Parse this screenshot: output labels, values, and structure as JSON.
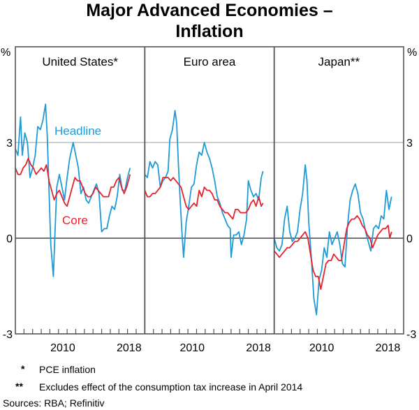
{
  "chart_data": {
    "type": "line",
    "title": "Major Advanced Economies – Inflation",
    "title_lines": [
      "Major Advanced Economies –",
      "Inflation"
    ],
    "ylabel": "%",
    "ylim": [
      -3,
      6
    ],
    "yticks": [
      -3,
      0,
      3
    ],
    "xlim": [
      2005,
      2020
    ],
    "xtick_labels": [
      "2010",
      "2018"
    ],
    "grid": "horizontal at 3",
    "colors": {
      "headline": "#1e9bd7",
      "core": "#e8222d",
      "axis": "#555555",
      "grid": "#b0b0b0"
    },
    "series_labels": {
      "headline": "Headline",
      "core": "Core"
    },
    "panels": [
      {
        "name": "United States*",
        "series": [
          {
            "name": "Headline",
            "x": [
              2005,
              2005.3,
              2005.6,
              2005.8,
              2006.1,
              2006.4,
              2006.7,
              2007.0,
              2007.3,
              2007.6,
              2007.9,
              2008.2,
              2008.5,
              2008.7,
              2008.9,
              2009.1,
              2009.4,
              2009.6,
              2009.8,
              2010.1,
              2010.4,
              2010.7,
              2011.0,
              2011.3,
              2011.7,
              2012.0,
              2012.3,
              2012.6,
              2012.9,
              2013.2,
              2013.5,
              2013.8,
              2014.1,
              2014.4,
              2014.7,
              2015.0,
              2015.3,
              2015.6,
              2015.9,
              2016.2,
              2016.5,
              2016.8,
              2017.1,
              2017.4,
              2017.7,
              2018.0,
              2018.3
            ],
            "values": [
              2.8,
              2.6,
              3.8,
              2.6,
              3.3,
              3.0,
              1.9,
              2.2,
              2.6,
              3.5,
              3.4,
              3.7,
              4.2,
              3.2,
              1.5,
              -0.2,
              -1.2,
              0.2,
              1.6,
              2.0,
              1.6,
              1.2,
              1.9,
              2.5,
              3.0,
              2.6,
              2.2,
              1.4,
              1.6,
              1.2,
              1.1,
              1.3,
              1.5,
              1.7,
              1.4,
              0.2,
              0.3,
              0.3,
              0.7,
              1.0,
              0.9,
              1.3,
              2.0,
              1.5,
              1.5,
              1.9,
              2.2
            ]
          },
          {
            "name": "Core",
            "x": [
              2005,
              2005.3,
              2005.6,
              2005.9,
              2006.2,
              2006.5,
              2006.8,
              2007.1,
              2007.4,
              2007.7,
              2008.0,
              2008.3,
              2008.6,
              2008.9,
              2009.2,
              2009.5,
              2009.8,
              2010.1,
              2010.4,
              2010.7,
              2011.0,
              2011.3,
              2011.6,
              2011.9,
              2012.2,
              2012.5,
              2012.8,
              2013.1,
              2013.4,
              2013.7,
              2014.0,
              2014.3,
              2014.6,
              2014.9,
              2015.2,
              2015.5,
              2015.8,
              2016.1,
              2016.4,
              2016.7,
              2017.0,
              2017.3,
              2017.6,
              2017.9,
              2018.2,
              2018.3
            ],
            "values": [
              2.2,
              2.0,
              2.0,
              2.2,
              2.3,
              2.5,
              2.3,
              2.2,
              2.0,
              2.1,
              2.2,
              2.1,
              2.3,
              1.8,
              1.5,
              1.2,
              1.4,
              1.5,
              1.3,
              1.1,
              1.0,
              1.3,
              1.6,
              1.9,
              1.8,
              1.8,
              1.6,
              1.4,
              1.3,
              1.3,
              1.4,
              1.6,
              1.5,
              1.4,
              1.3,
              1.3,
              1.3,
              1.6,
              1.6,
              1.8,
              1.9,
              1.6,
              1.4,
              1.6,
              1.9,
              2.0
            ]
          }
        ]
      },
      {
        "name": "Euro area",
        "series": [
          {
            "name": "Headline",
            "x": [
              2005,
              2005.3,
              2005.6,
              2005.9,
              2006.2,
              2006.5,
              2006.8,
              2007.1,
              2007.4,
              2007.7,
              2007.9,
              2008.2,
              2008.5,
              2008.7,
              2008.9,
              2009.1,
              2009.3,
              2009.5,
              2009.8,
              2010.1,
              2010.4,
              2010.7,
              2011.0,
              2011.3,
              2011.6,
              2011.9,
              2012.2,
              2012.5,
              2012.8,
              2013.1,
              2013.4,
              2013.7,
              2014.0,
              2014.3,
              2014.6,
              2014.9,
              2015.0,
              2015.3,
              2015.6,
              2015.9,
              2016.2,
              2016.5,
              2016.8,
              2017.0,
              2017.3,
              2017.6,
              2017.9,
              2018.2,
              2018.5,
              2018.7
            ],
            "values": [
              2.0,
              1.9,
              2.4,
              2.2,
              2.4,
              2.3,
              1.6,
              1.8,
              1.9,
              2.1,
              3.1,
              3.4,
              4.0,
              3.6,
              2.3,
              1.2,
              0.2,
              -0.6,
              0.5,
              1.0,
              1.6,
              1.7,
              2.3,
              2.7,
              2.6,
              3.0,
              2.7,
              2.5,
              2.2,
              1.8,
              1.3,
              1.1,
              0.8,
              0.6,
              0.4,
              0.3,
              -0.6,
              0.1,
              0.1,
              0.2,
              -0.2,
              0.1,
              0.6,
              1.8,
              1.5,
              1.3,
              1.4,
              1.2,
              1.9,
              2.1
            ]
          },
          {
            "name": "Core",
            "x": [
              2005,
              2005.3,
              2005.6,
              2005.9,
              2006.2,
              2006.5,
              2006.8,
              2007.1,
              2007.4,
              2007.7,
              2008.0,
              2008.3,
              2008.6,
              2008.9,
              2009.2,
              2009.5,
              2009.8,
              2010.1,
              2010.4,
              2010.7,
              2011.0,
              2011.3,
              2011.6,
              2011.9,
              2012.2,
              2012.5,
              2012.8,
              2013.1,
              2013.4,
              2013.7,
              2014.0,
              2014.3,
              2014.6,
              2014.9,
              2015.2,
              2015.5,
              2015.8,
              2016.1,
              2016.4,
              2016.7,
              2017.0,
              2017.3,
              2017.6,
              2017.9,
              2018.2,
              2018.5,
              2018.7
            ],
            "values": [
              1.5,
              1.3,
              1.3,
              1.4,
              1.4,
              1.5,
              1.6,
              1.9,
              1.9,
              1.9,
              1.8,
              1.9,
              1.8,
              1.7,
              1.6,
              1.3,
              1.0,
              0.9,
              1.0,
              1.1,
              1.0,
              1.5,
              1.3,
              1.6,
              1.5,
              1.5,
              1.4,
              1.2,
              1.2,
              1.0,
              0.9,
              0.8,
              0.8,
              0.7,
              0.6,
              0.9,
              0.9,
              0.8,
              0.8,
              0.8,
              0.9,
              1.1,
              1.2,
              1.0,
              1.3,
              1.0,
              1.1
            ]
          }
        ]
      },
      {
        "name": "Japan**",
        "series": [
          {
            "name": "Headline",
            "x": [
              2005,
              2005.3,
              2005.6,
              2005.9,
              2006.2,
              2006.5,
              2006.8,
              2007.1,
              2007.4,
              2007.7,
              2008.0,
              2008.3,
              2008.6,
              2008.8,
              2009.0,
              2009.3,
              2009.6,
              2009.9,
              2010.2,
              2010.5,
              2010.8,
              2011.1,
              2011.4,
              2011.7,
              2012.0,
              2012.3,
              2012.6,
              2012.9,
              2013.2,
              2013.5,
              2013.8,
              2014.1,
              2014.4,
              2014.7,
              2015.0,
              2015.3,
              2015.6,
              2015.9,
              2016.2,
              2016.5,
              2016.8,
              2017.1,
              2017.4,
              2017.7,
              2018.0,
              2018.3,
              2018.6
            ],
            "values": [
              0.0,
              -0.3,
              -0.4,
              -0.2,
              0.6,
              1.0,
              0.2,
              -0.1,
              0.0,
              0.2,
              0.9,
              1.4,
              2.3,
              1.8,
              0.5,
              -0.6,
              -1.9,
              -2.4,
              -1.3,
              -1.0,
              -0.3,
              -0.6,
              0.2,
              -0.2,
              0.0,
              0.2,
              -0.2,
              -0.8,
              -0.9,
              0.4,
              1.2,
              1.5,
              1.7,
              1.4,
              0.8,
              0.6,
              0.2,
              -0.1,
              -0.4,
              0.3,
              0.4,
              0.3,
              0.7,
              0.6,
              1.5,
              0.9,
              1.3
            ]
          },
          {
            "name": "Core",
            "x": [
              2005,
              2005.3,
              2005.6,
              2005.9,
              2006.2,
              2006.5,
              2006.8,
              2007.1,
              2007.4,
              2007.7,
              2008.0,
              2008.3,
              2008.6,
              2008.9,
              2009.2,
              2009.5,
              2009.8,
              2010.1,
              2010.4,
              2010.7,
              2011.0,
              2011.3,
              2011.6,
              2011.9,
              2012.2,
              2012.5,
              2012.8,
              2013.1,
              2013.4,
              2013.7,
              2014.0,
              2014.3,
              2014.6,
              2014.9,
              2015.2,
              2015.5,
              2015.8,
              2016.1,
              2016.4,
              2016.7,
              2017.0,
              2017.3,
              2017.6,
              2017.9,
              2018.2,
              2018.4,
              2018.6
            ],
            "values": [
              -0.4,
              -0.5,
              -0.6,
              -0.5,
              -0.4,
              -0.3,
              -0.3,
              -0.2,
              -0.1,
              -0.1,
              0.0,
              0.1,
              0.2,
              0.0,
              -0.5,
              -1.0,
              -1.2,
              -1.2,
              -1.6,
              -1.2,
              -0.8,
              -0.7,
              -0.7,
              -0.5,
              -0.6,
              -0.7,
              -0.7,
              -0.2,
              0.3,
              0.5,
              0.6,
              0.6,
              0.7,
              0.6,
              0.4,
              0.3,
              0.1,
              0.0,
              -0.3,
              -0.1,
              0.1,
              0.2,
              0.3,
              0.3,
              0.4,
              0.0,
              0.2
            ]
          }
        ]
      }
    ]
  },
  "footnotes": [
    {
      "mark": "*",
      "text": "PCE inflation"
    },
    {
      "mark": "**",
      "text": "Excludes effect of the consumption tax increase in April 2014"
    }
  ],
  "sources": "Sources: RBA; Refinitiv"
}
